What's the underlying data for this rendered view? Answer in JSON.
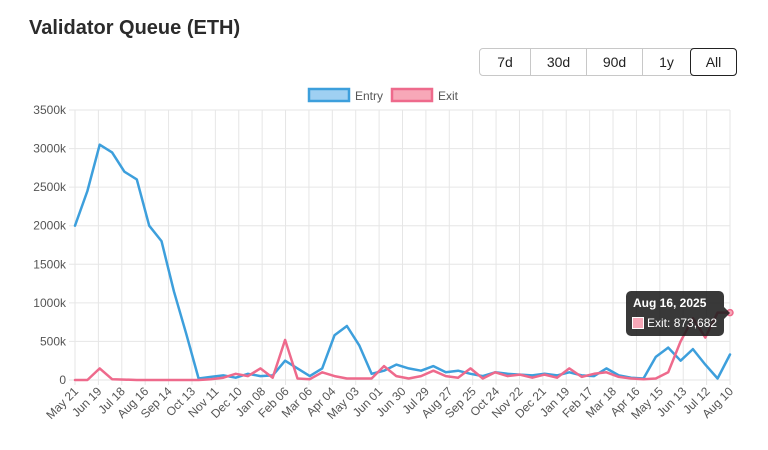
{
  "title": "Validator Queue (ETH)",
  "ranges": [
    {
      "label": "7d",
      "active": false
    },
    {
      "label": "30d",
      "active": false
    },
    {
      "label": "90d",
      "active": false
    },
    {
      "label": "1y",
      "active": false
    },
    {
      "label": "All",
      "active": true
    }
  ],
  "colors": {
    "entry": "#3d9fdc",
    "entry_fill": "#9fd0f2",
    "exit": "#ee6a8c",
    "exit_fill": "#f7a8b8",
    "grid": "#e6e6e6"
  },
  "tooltip": {
    "date": "Aug 16, 2025",
    "series": "Exit",
    "value_text": "873,682",
    "value": 873682
  },
  "chart_data": {
    "type": "line",
    "title": "Validator Queue (ETH)",
    "legend_placement": "top-center",
    "grid": true,
    "ylim": [
      0,
      3500000
    ],
    "y_ticks": [
      {
        "value": 0,
        "label": "0"
      },
      {
        "value": 500000,
        "label": "500k"
      },
      {
        "value": 1000000,
        "label": "1000k"
      },
      {
        "value": 1500000,
        "label": "1500k"
      },
      {
        "value": 2000000,
        "label": "2000k"
      },
      {
        "value": 2500000,
        "label": "2500k"
      },
      {
        "value": 3000000,
        "label": "3000k"
      },
      {
        "value": 3500000,
        "label": "3500k"
      }
    ],
    "x_tick_labels": [
      "May 21",
      "Jun 19",
      "Jul 18",
      "Aug 16",
      "Sep 14",
      "Oct 13",
      "Nov 11",
      "Dec 10",
      "Jan 08",
      "Feb 06",
      "Mar 06",
      "Apr 04",
      "May 03",
      "Jun 01",
      "Jun 30",
      "Jul 29",
      "Aug 27",
      "Sep 25",
      "Oct 24",
      "Nov 22",
      "Dec 21",
      "Jan 19",
      "Feb 17",
      "Mar 18",
      "Apr 16",
      "May 15",
      "Jun 13",
      "Jul 12",
      "Aug 10"
    ],
    "series": [
      {
        "name": "Entry",
        "values": [
          2000000,
          2450000,
          3050000,
          2950000,
          2700000,
          2600000,
          2000000,
          1800000,
          1150000,
          600000,
          20000,
          40000,
          60000,
          30000,
          80000,
          50000,
          60000,
          250000,
          150000,
          50000,
          150000,
          580000,
          700000,
          450000,
          80000,
          120000,
          200000,
          150000,
          120000,
          180000,
          100000,
          120000,
          80000,
          50000,
          100000,
          80000,
          70000,
          60000,
          80000,
          60000,
          100000,
          60000,
          50000,
          150000,
          60000,
          30000,
          20000,
          300000,
          420000,
          250000,
          400000,
          200000,
          20000,
          330000
        ]
      },
      {
        "name": "Exit",
        "values": [
          0,
          0,
          150000,
          10000,
          5000,
          0,
          0,
          0,
          0,
          0,
          0,
          10000,
          30000,
          80000,
          50000,
          150000,
          30000,
          520000,
          20000,
          10000,
          100000,
          50000,
          20000,
          20000,
          20000,
          180000,
          50000,
          20000,
          50000,
          120000,
          50000,
          30000,
          150000,
          20000,
          100000,
          50000,
          70000,
          30000,
          70000,
          30000,
          150000,
          40000,
          80000,
          100000,
          40000,
          20000,
          10000,
          20000,
          100000,
          500000,
          800000,
          550000,
          873682,
          873682
        ]
      }
    ]
  }
}
